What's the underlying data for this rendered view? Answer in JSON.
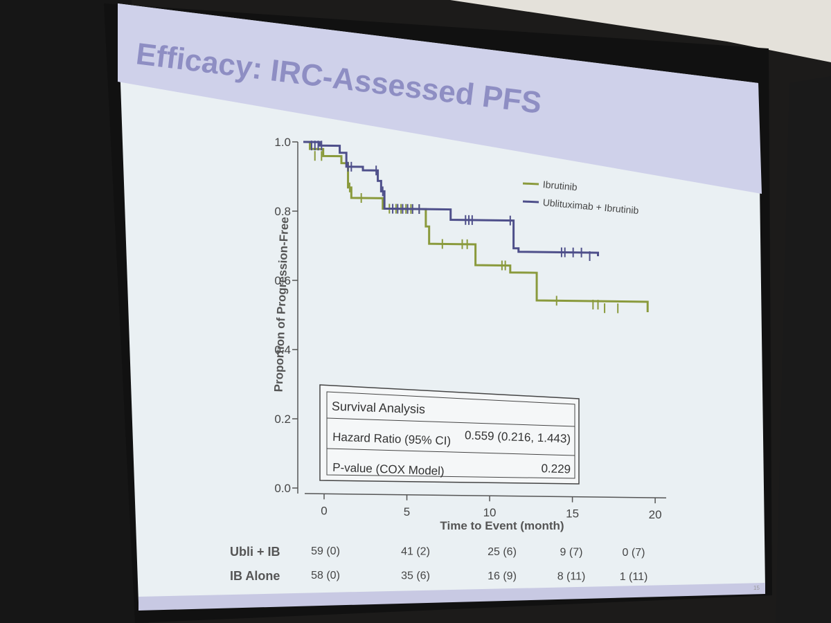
{
  "slide": {
    "title": "Efficacy: IRC-Assessed PFS",
    "page_number": "15"
  },
  "chart_data": {
    "type": "line",
    "subtype": "kaplan-meier",
    "title": "",
    "xlabel": "Time to Event (month)",
    "ylabel": "Proportion of Progression-Free",
    "xlim": [
      0,
      21
    ],
    "ylim": [
      0,
      1
    ],
    "x_ticks": [
      0,
      5,
      10,
      15,
      20
    ],
    "x_tick_labels": [
      "0",
      "5",
      "10",
      "15",
      "20"
    ],
    "y_ticks": [
      0,
      0.2,
      0.4,
      0.6,
      0.8,
      1.0
    ],
    "y_tick_labels": [
      "0.0",
      "0.2",
      "0.4",
      "0.6",
      "0.8",
      "1.0"
    ],
    "grid": false,
    "legend_position": "top-right",
    "series": [
      {
        "name": "Ibrutinib",
        "color": "#8a9a3c",
        "steps": [
          [
            0,
            1.0
          ],
          [
            0.4,
            0.98
          ],
          [
            1.2,
            0.96
          ],
          [
            2.3,
            0.94
          ],
          [
            2.7,
            0.87
          ],
          [
            2.9,
            0.84
          ],
          [
            4.8,
            0.81
          ],
          [
            7.4,
            0.76
          ],
          [
            7.6,
            0.71
          ],
          [
            10.4,
            0.65
          ],
          [
            12.5,
            0.63
          ],
          [
            14.1,
            0.55
          ],
          [
            20.8,
            0.52
          ]
        ],
        "censored": [
          [
            0.7,
            0.96
          ],
          [
            1.1,
            0.96
          ],
          [
            2.8,
            0.87
          ],
          [
            3.5,
            0.84
          ],
          [
            5.2,
            0.81
          ],
          [
            5.6,
            0.81
          ],
          [
            5.9,
            0.81
          ],
          [
            6.2,
            0.81
          ],
          [
            6.5,
            0.81
          ],
          [
            7.0,
            0.81
          ],
          [
            8.4,
            0.71
          ],
          [
            9.6,
            0.71
          ],
          [
            9.9,
            0.71
          ],
          [
            12.0,
            0.65
          ],
          [
            12.2,
            0.65
          ],
          [
            15.3,
            0.55
          ],
          [
            17.5,
            0.54
          ],
          [
            17.8,
            0.54
          ],
          [
            18.2,
            0.53
          ],
          [
            19.0,
            0.53
          ]
        ]
      },
      {
        "name": "Ublituximab + Ibrutinib",
        "color": "#4e4f8a",
        "steps": [
          [
            0,
            1.0
          ],
          [
            1.0,
            0.99
          ],
          [
            2.2,
            0.97
          ],
          [
            2.6,
            0.93
          ],
          [
            3.6,
            0.92
          ],
          [
            4.5,
            0.89
          ],
          [
            4.7,
            0.86
          ],
          [
            4.9,
            0.81
          ],
          [
            8.9,
            0.78
          ],
          [
            12.7,
            0.7
          ],
          [
            13.0,
            0.69
          ],
          [
            17.8,
            0.68
          ]
        ],
        "censored": [
          [
            0.5,
            0.99
          ],
          [
            0.7,
            0.99
          ],
          [
            0.9,
            0.99
          ],
          [
            1.1,
            0.99
          ],
          [
            2.7,
            0.93
          ],
          [
            2.9,
            0.93
          ],
          [
            4.4,
            0.92
          ],
          [
            4.8,
            0.86
          ],
          [
            5.4,
            0.81
          ],
          [
            5.7,
            0.81
          ],
          [
            6.0,
            0.81
          ],
          [
            6.3,
            0.81
          ],
          [
            6.6,
            0.81
          ],
          [
            7.0,
            0.81
          ],
          [
            9.8,
            0.78
          ],
          [
            10.0,
            0.78
          ],
          [
            10.2,
            0.78
          ],
          [
            12.5,
            0.78
          ],
          [
            15.6,
            0.69
          ],
          [
            15.8,
            0.69
          ],
          [
            16.3,
            0.69
          ],
          [
            16.8,
            0.69
          ],
          [
            17.3,
            0.68
          ]
        ]
      }
    ],
    "survival_analysis": {
      "heading": "Survival Analysis",
      "rows": [
        {
          "label": "Hazard Ratio (95% CI)",
          "value": "0.559 (0.216, 1.443)"
        },
        {
          "label": "P-value (COX Model)",
          "value": "0.229"
        }
      ]
    },
    "at_risk": {
      "times": [
        0,
        5,
        10,
        15,
        20
      ],
      "rows": [
        {
          "label": "Ubli + IB",
          "values": [
            "59 (0)",
            "41 (2)",
            "25 (6)",
            "9 (7)",
            "0 (7)"
          ]
        },
        {
          "label": "IB Alone",
          "values": [
            "58 (0)",
            "35 (6)",
            "16 (9)",
            "8 (11)",
            "1 (11)"
          ]
        }
      ]
    }
  }
}
